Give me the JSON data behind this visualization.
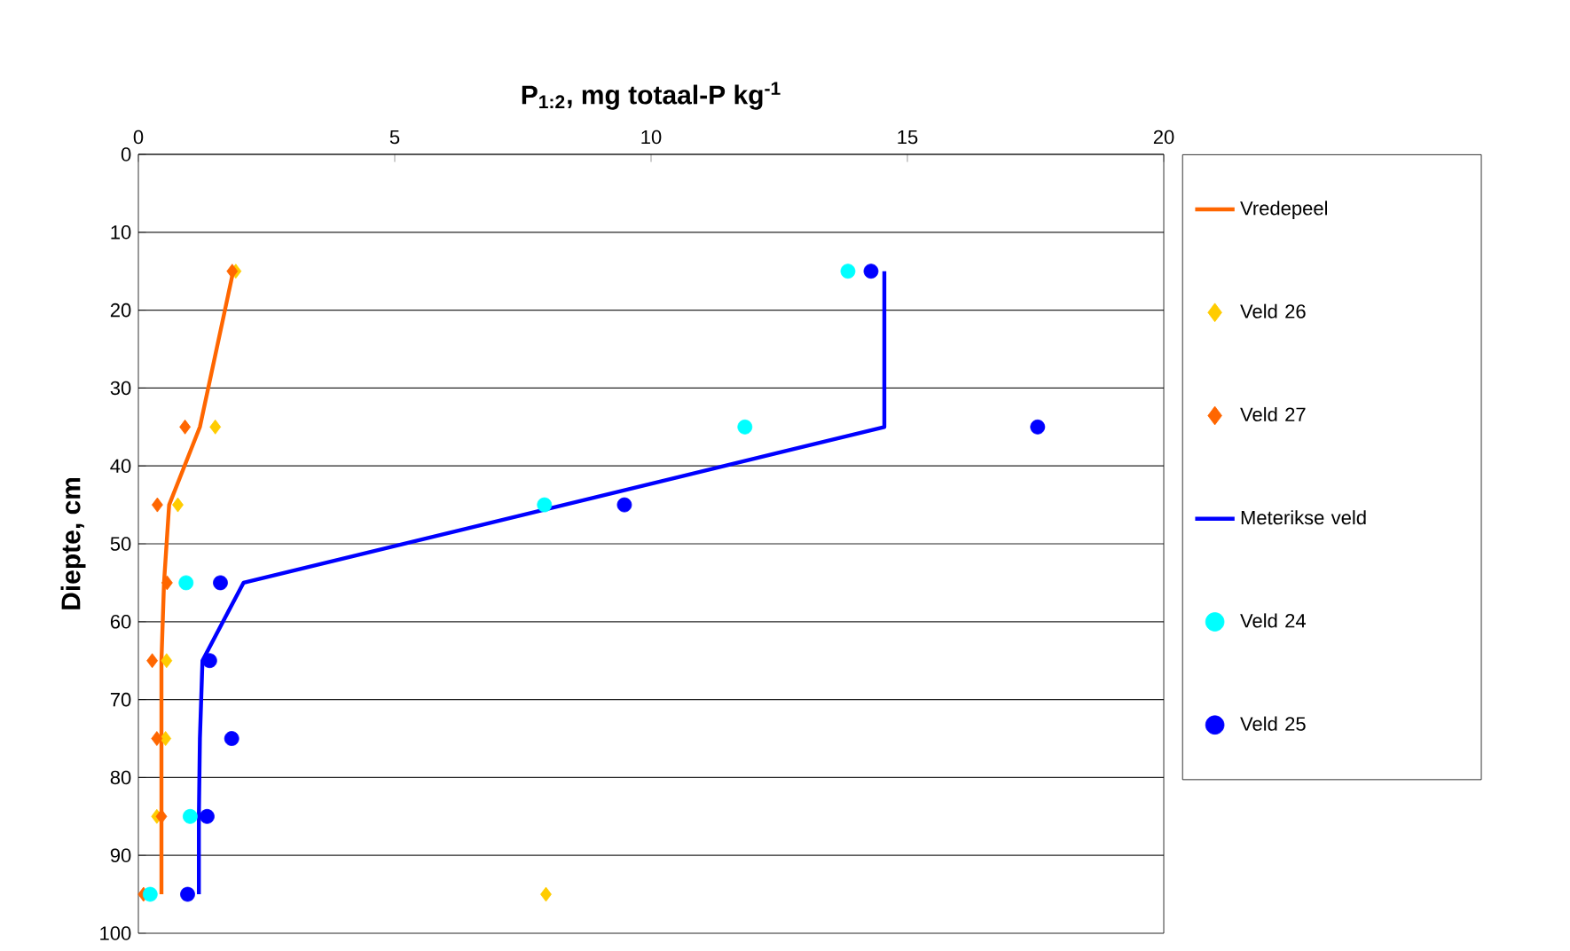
{
  "chart_data": {
    "type": "line",
    "xlabel": "P$_{1:2}$, mg totaal-P kg$^{-1}$",
    "ylabel": "Diepte, cm",
    "xlim": [
      0,
      20
    ],
    "xticks": [
      0,
      5,
      10,
      15,
      20
    ],
    "ylim": [
      100,
      0
    ],
    "yticks": [
      0,
      10,
      20,
      30,
      40,
      50,
      60,
      70,
      80,
      90,
      100
    ],
    "grid": "y",
    "legend": "right",
    "series": [
      {
        "name": "Vredepeel",
        "marker": "none",
        "color": "#ff6600",
        "x": [
          1.85,
          1.2,
          0.6,
          0.5,
          0.45,
          0.45,
          0.45,
          0.45
        ],
        "values": [
          15,
          35,
          45,
          55,
          65,
          75,
          85,
          95
        ]
      },
      {
        "name": "Veld 26",
        "type": "scatter",
        "marker": "diamond",
        "color": "#ffcc00",
        "x": [
          1.9,
          1.5,
          0.77,
          null,
          0.55,
          0.53,
          0.36,
          7.95
        ],
        "values": [
          15,
          35,
          45,
          null,
          65,
          75,
          85,
          95
        ]
      },
      {
        "name": "Veld 27",
        "type": "scatter",
        "marker": "diamond",
        "color": "#ff6600",
        "x": [
          1.83,
          0.91,
          0.37,
          0.56,
          0.27,
          0.36,
          0.45,
          0.1
        ],
        "values": [
          15,
          35,
          45,
          55,
          65,
          75,
          85,
          95
        ]
      },
      {
        "name": "Meterikse veld",
        "marker": "none",
        "color": "#0000ff",
        "x": [
          14.55,
          14.55,
          2.05,
          1.25,
          1.2,
          1.18,
          1.18
        ],
        "values": [
          15,
          35,
          55,
          65,
          75,
          85,
          95
        ]
      },
      {
        "name": "Veld 24",
        "type": "scatter",
        "marker": "circle",
        "color": "#00ffff",
        "x": [
          13.84,
          11.83,
          7.92,
          0.93,
          1.01,
          0.23
        ],
        "values": [
          15,
          35,
          45,
          55,
          85,
          95
        ]
      },
      {
        "name": "Veld 25",
        "type": "scatter",
        "marker": "circle",
        "color": "#0000ff",
        "x": [
          14.29,
          17.54,
          9.48,
          1.6,
          1.39,
          1.82,
          1.34,
          0.96
        ],
        "values": [
          15,
          35,
          45,
          55,
          65,
          75,
          85,
          95
        ]
      }
    ]
  }
}
